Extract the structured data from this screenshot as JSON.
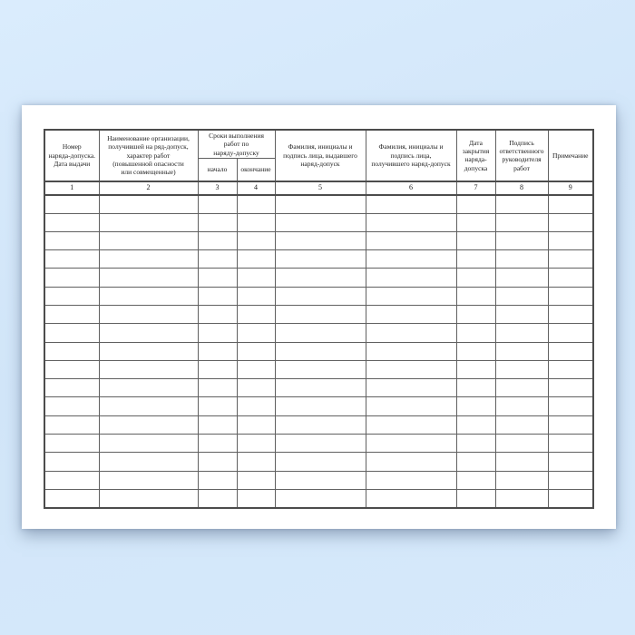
{
  "colors": {
    "background_blue": "#d5e8fb",
    "paper_white": "#ffffff",
    "grid_line": "#606060",
    "thick_line": "#4c4c4c",
    "text": "#1c1c1c"
  },
  "table": {
    "header": {
      "col1": "Номер\nнаряда-допуска.\nДата  выдачи",
      "col2": "Наименование  организации,\nполучившей на ряд-допуск,\nхарактер работ\n(повышенной опасности\nили совмещенные)",
      "col34_group": "Сроки выполнения\nработ по\nнаряду-допуску",
      "col3": "начало",
      "col4": "окончание",
      "col5": "Фамилия, инициалы и\nподпись лица, выдавшего\nнаряд-допуск",
      "col6": "Фамилия, инициалы и\nподпись лица,\nполучившего наряд-допуск",
      "col7": "Дата\nзакрытия\nнаряда-\nдопуска",
      "col8": "Подпись\nответственного\nруководителя\nработ",
      "col9": "Примечание"
    },
    "column_numbers": [
      "1",
      "2",
      "3",
      "4",
      "5",
      "6",
      "7",
      "8",
      "9"
    ],
    "empty_row_count": 17
  }
}
